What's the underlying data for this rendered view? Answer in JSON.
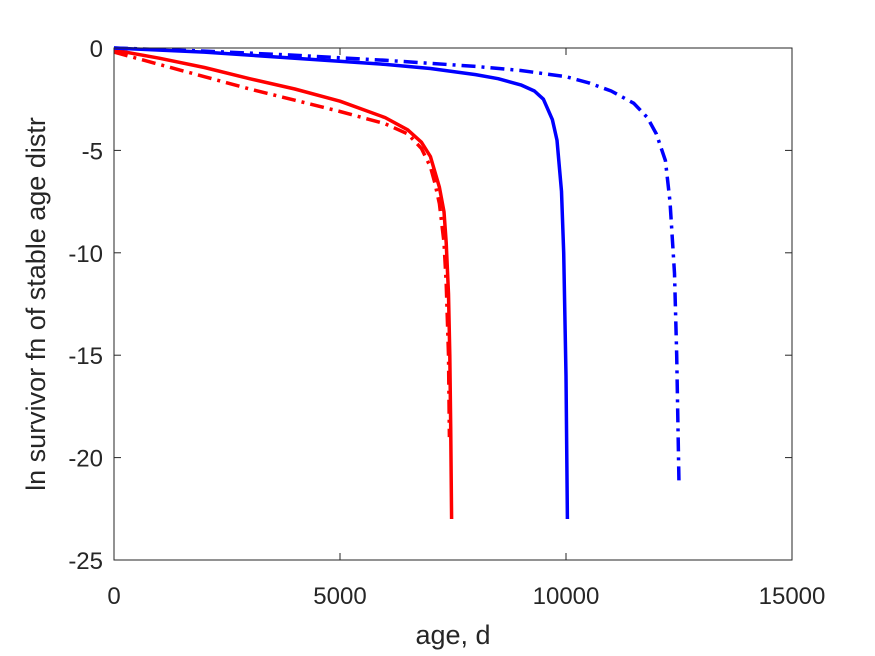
{
  "chart_data": {
    "type": "line",
    "title": "",
    "xlabel": "age, d",
    "ylabel": "ln survivor fn of stable age distr",
    "xlim": [
      0,
      15000
    ],
    "ylim": [
      -25,
      0
    ],
    "xticks": [
      0,
      5000,
      10000,
      15000
    ],
    "xtick_labels": [
      "0",
      "5000",
      "10000",
      "15000"
    ],
    "yticks": [
      0,
      -5,
      -10,
      -15,
      -20,
      -25
    ],
    "ytick_labels": [
      "0",
      "-5",
      "-10",
      "-15",
      "-20",
      "-25"
    ],
    "grid": false,
    "legend": "none",
    "series": [
      {
        "color": "#ff0000",
        "linestyle": "solid",
        "x": [
          0,
          1000,
          2000,
          3000,
          4000,
          5000,
          6000,
          6500,
          6800,
          7000,
          7200,
          7300,
          7350,
          7400,
          7430,
          7450,
          7470
        ],
        "y": [
          -0.1,
          -0.5,
          -0.95,
          -1.5,
          -2.0,
          -2.6,
          -3.4,
          -4.0,
          -4.6,
          -5.3,
          -6.8,
          -8.0,
          -9.5,
          -12.0,
          -15.0,
          -18.5,
          -23.0
        ]
      },
      {
        "color": "#ff0000",
        "linestyle": "dashdot",
        "x": [
          0,
          1000,
          2000,
          3000,
          4000,
          5000,
          6000,
          6500,
          6800,
          7000,
          7100,
          7200,
          7300,
          7350,
          7400,
          7420
        ],
        "y": [
          -0.2,
          -0.8,
          -1.4,
          -2.0,
          -2.55,
          -3.1,
          -3.7,
          -4.2,
          -4.9,
          -5.8,
          -6.6,
          -7.6,
          -9.5,
          -11.5,
          -15.0,
          -19.0
        ]
      },
      {
        "color": "#0000ff",
        "linestyle": "solid",
        "x": [
          0,
          2000,
          4000,
          6000,
          7000,
          8000,
          8500,
          9000,
          9300,
          9500,
          9700,
          9800,
          9900,
          9950,
          10000,
          10030
        ],
        "y": [
          0,
          -0.2,
          -0.5,
          -0.8,
          -1.0,
          -1.3,
          -1.5,
          -1.8,
          -2.1,
          -2.5,
          -3.5,
          -4.5,
          -7.0,
          -10.0,
          -16.0,
          -23.0
        ]
      },
      {
        "color": "#0000ff",
        "linestyle": "dashdot",
        "x": [
          0,
          2000,
          4000,
          6000,
          8000,
          9000,
          10000,
          10500,
          11000,
          11500,
          11800,
          12000,
          12200,
          12300,
          12400,
          12450,
          12500
        ],
        "y": [
          0,
          -0.15,
          -0.35,
          -0.6,
          -0.9,
          -1.1,
          -1.4,
          -1.7,
          -2.1,
          -2.7,
          -3.4,
          -4.2,
          -5.5,
          -7.5,
          -11.0,
          -15.0,
          -21.3
        ]
      }
    ]
  }
}
